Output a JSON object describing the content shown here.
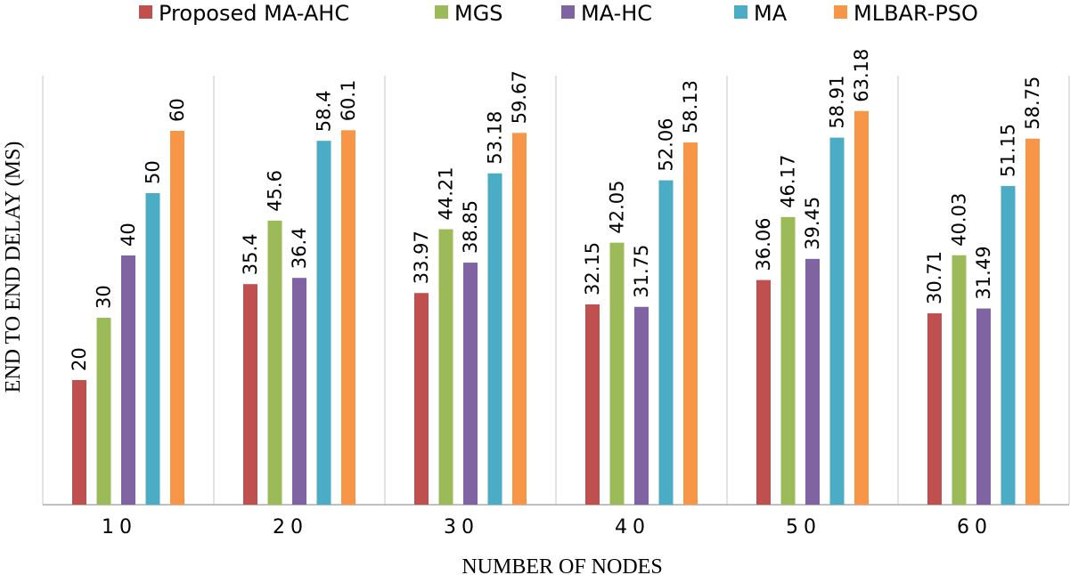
{
  "chart_data": {
    "type": "bar",
    "xlabel": "NUMBER OF NODES",
    "ylabel": "END TO END DELAY (MS)",
    "ylim": [
      0,
      70
    ],
    "legend_position": "top",
    "categories": [
      "10",
      "20",
      "30",
      "40",
      "50",
      "60"
    ],
    "series": [
      {
        "name": "Proposed MA-AHC",
        "color": "#c0504d",
        "values": [
          20,
          35.4,
          33.97,
          32.15,
          36.06,
          30.71
        ],
        "labels": [
          "20",
          "35.4",
          "33.97",
          "32.15",
          "36.06",
          "30.71"
        ]
      },
      {
        "name": "MGS",
        "color": "#9bbb59",
        "values": [
          30,
          45.6,
          44.21,
          42.05,
          46.17,
          40.03
        ],
        "labels": [
          "30",
          "45.6",
          "44.21",
          "42.05",
          "46.17",
          "40.03"
        ]
      },
      {
        "name": "MA-HC",
        "color": "#8064a2",
        "values": [
          40,
          36.4,
          38.85,
          31.75,
          39.45,
          31.49
        ],
        "labels": [
          "40",
          "36.4",
          "38.85",
          "31.75",
          "39.45",
          "31.49"
        ]
      },
      {
        "name": "MA",
        "color": "#4bacc6",
        "values": [
          50,
          58.4,
          53.18,
          52.06,
          58.91,
          51.15
        ],
        "labels": [
          "50",
          "58.4",
          "53.18",
          "52.06",
          "58.91",
          "51.15"
        ]
      },
      {
        "name": "MLBAR-PSO",
        "color": "#f79646",
        "values": [
          60,
          60.1,
          59.67,
          58.13,
          63.18,
          58.75
        ],
        "labels": [
          "60",
          "60.1",
          "59.67",
          "58.13",
          "63.18",
          "58.75"
        ]
      }
    ]
  }
}
